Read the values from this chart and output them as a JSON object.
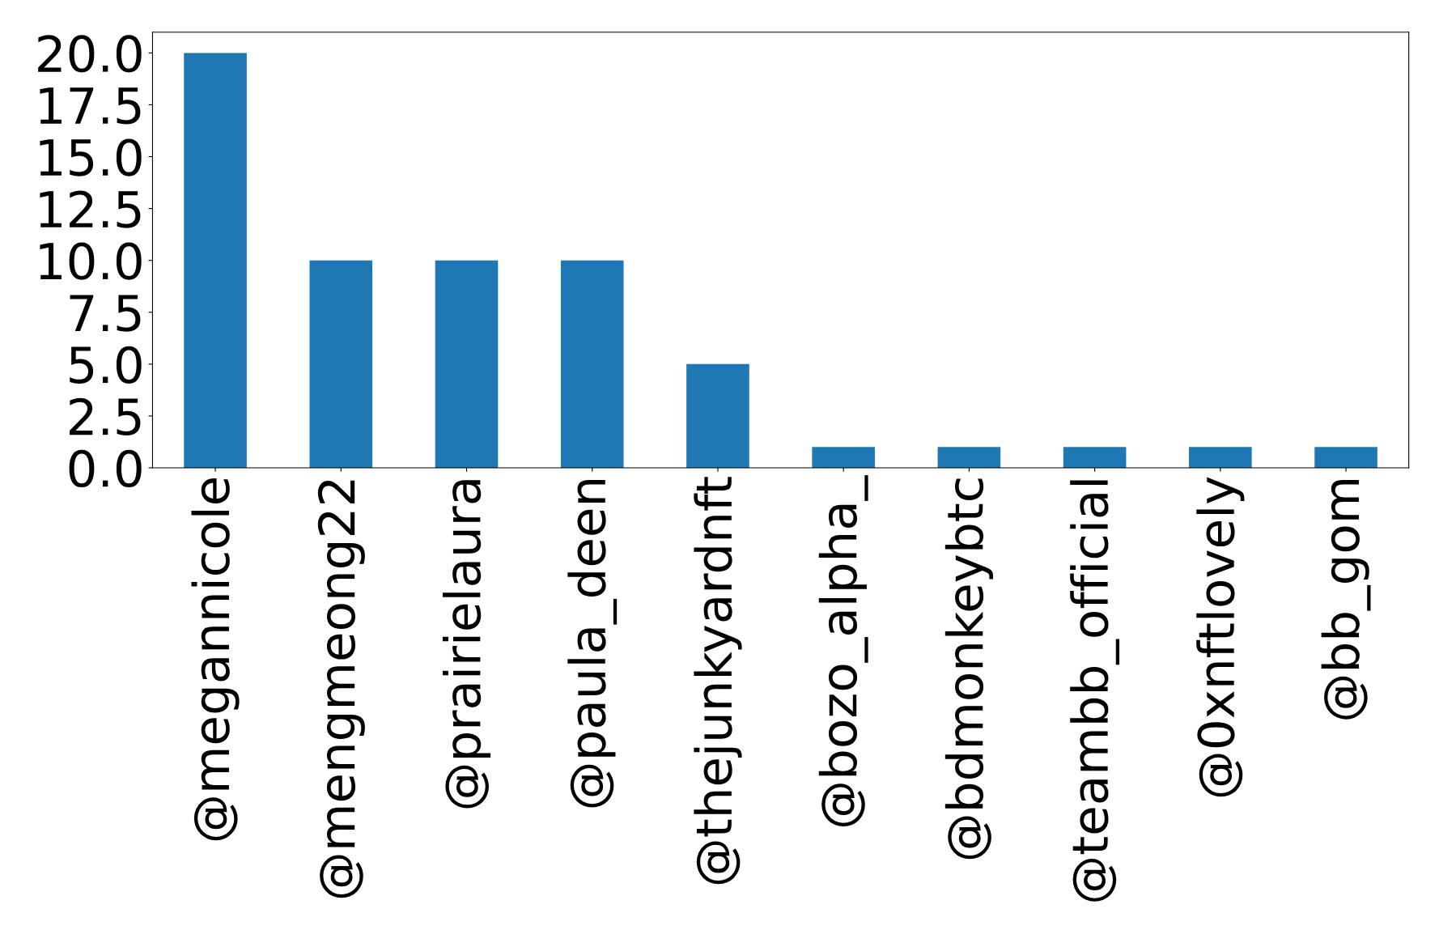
{
  "chart_data": {
    "type": "bar",
    "categories": [
      "@megannicole",
      "@mengmeong22",
      "@prairielaura",
      "@paula_deen",
      "@thejunkyardnft",
      "@bozo_alpha_",
      "@bdmonkeybtc",
      "@teambb_official",
      "@0xnftlovely",
      "@bb_gom"
    ],
    "values": [
      20,
      10,
      10,
      10,
      5,
      1,
      1,
      1,
      1,
      1
    ],
    "color": "#1f77b4",
    "ylim": [
      0,
      21
    ],
    "yticks": [
      {
        "value": 0,
        "label": "0.0"
      },
      {
        "value": 2.5,
        "label": "2.5"
      },
      {
        "value": 5,
        "label": "5.0"
      },
      {
        "value": 7.5,
        "label": "7.5"
      },
      {
        "value": 10,
        "label": "10.0"
      },
      {
        "value": 12.5,
        "label": "12.5"
      },
      {
        "value": 15,
        "label": "15.0"
      },
      {
        "value": 17.5,
        "label": "17.5"
      },
      {
        "value": 20,
        "label": "20.0"
      }
    ],
    "grid": false,
    "legend": false
  }
}
